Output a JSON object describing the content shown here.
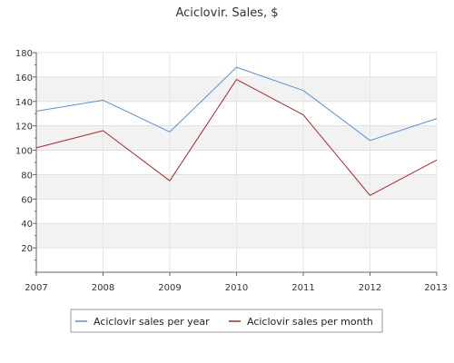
{
  "chart_data": {
    "type": "line",
    "title": "Aciclovir. Sales, $",
    "xlabel": "",
    "ylabel": "",
    "x": [
      "2007",
      "2008",
      "2009",
      "2010",
      "2011",
      "2012",
      "2013"
    ],
    "ylim": [
      0,
      180
    ],
    "yticks": [
      20,
      40,
      60,
      80,
      100,
      120,
      140,
      160,
      180
    ],
    "grid": true,
    "legend_position": "bottom-center",
    "series": [
      {
        "name": "Aciclovir sales per year",
        "color": "#5b8fd9",
        "values": [
          132,
          141,
          115,
          168,
          149,
          108,
          126
        ]
      },
      {
        "name": "Aciclovir sales per month",
        "color": "#a52a2a",
        "values": [
          102,
          116,
          75,
          158,
          129,
          63,
          92
        ]
      }
    ]
  }
}
